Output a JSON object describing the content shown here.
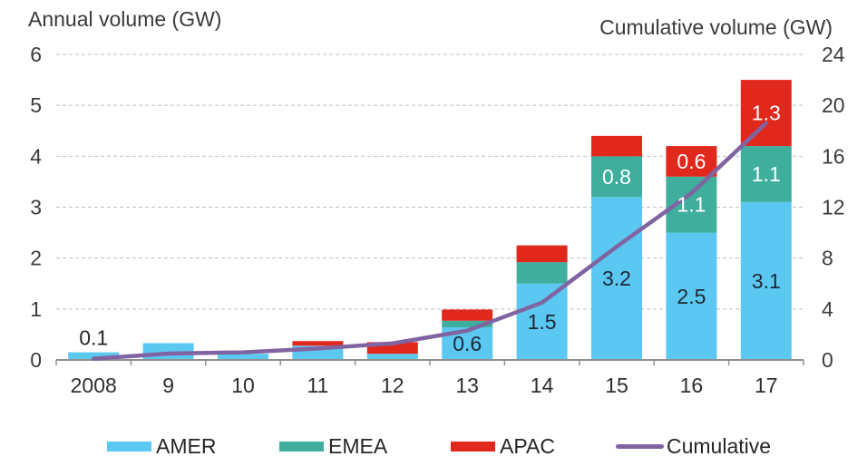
{
  "chart_data": {
    "type": "bar",
    "stacked": true,
    "categories": [
      "2008",
      "9",
      "10",
      "11",
      "12",
      "13",
      "14",
      "15",
      "16",
      "17"
    ],
    "left_axis": {
      "title": "Annual volume (GW)",
      "min": 0,
      "max": 6,
      "ticks": [
        0,
        1,
        2,
        3,
        4,
        5,
        6
      ]
    },
    "right_axis": {
      "title": "Cumulative volume (GW)",
      "min": 0,
      "max": 24,
      "ticks": [
        0,
        4,
        8,
        12,
        16,
        20,
        24
      ]
    },
    "grid": {
      "show": true,
      "style": "dashed",
      "color": "#bfbfbf"
    },
    "series": [
      {
        "name": "AMER",
        "type": "bar",
        "color": "#5bc8f2",
        "label_color": "#1f2633",
        "values": [
          0.15,
          0.33,
          0.12,
          0.28,
          0.12,
          0.64,
          1.5,
          3.2,
          2.5,
          3.1
        ],
        "labels": [
          "",
          "",
          "",
          "",
          "",
          "0.6",
          "1.5",
          "3.2",
          "2.5",
          "3.1"
        ]
      },
      {
        "name": "EMEA",
        "type": "bar",
        "color": "#3fae9d",
        "label_color": "#ffffff",
        "values": [
          0,
          0,
          0,
          0,
          0,
          0.13,
          0.42,
          0.8,
          1.1,
          1.1
        ],
        "labels": [
          "",
          "",
          "",
          "",
          "",
          "",
          "",
          "0.8",
          "1.1",
          "1.1"
        ]
      },
      {
        "name": "APAC",
        "type": "bar",
        "color": "#e1281d",
        "label_color": "#ffffff",
        "values": [
          0,
          0,
          0,
          0.09,
          0.23,
          0.22,
          0.33,
          0.4,
          0.6,
          1.3
        ],
        "labels": [
          "",
          "",
          "",
          "",
          "",
          "",
          "",
          "",
          "0.6",
          "1.3"
        ]
      }
    ],
    "total_labels": [
      "0.1",
      "",
      "",
      "",
      "",
      "",
      "",
      "",
      "",
      ""
    ],
    "line_series": {
      "name": "Cumulative",
      "axis": "right",
      "color": "#8064a2",
      "values": [
        0.1,
        0.5,
        0.6,
        0.9,
        1.3,
        2.3,
        4.5,
        8.9,
        13.1,
        18.6
      ]
    },
    "legend": [
      {
        "label": "AMER",
        "swatch": "bar",
        "color": "#5bc8f2"
      },
      {
        "label": "EMEA",
        "swatch": "bar",
        "color": "#3fae9d"
      },
      {
        "label": "APAC",
        "swatch": "bar",
        "color": "#e1281d"
      },
      {
        "label": "Cumulative",
        "swatch": "line",
        "color": "#8064a2"
      }
    ]
  }
}
